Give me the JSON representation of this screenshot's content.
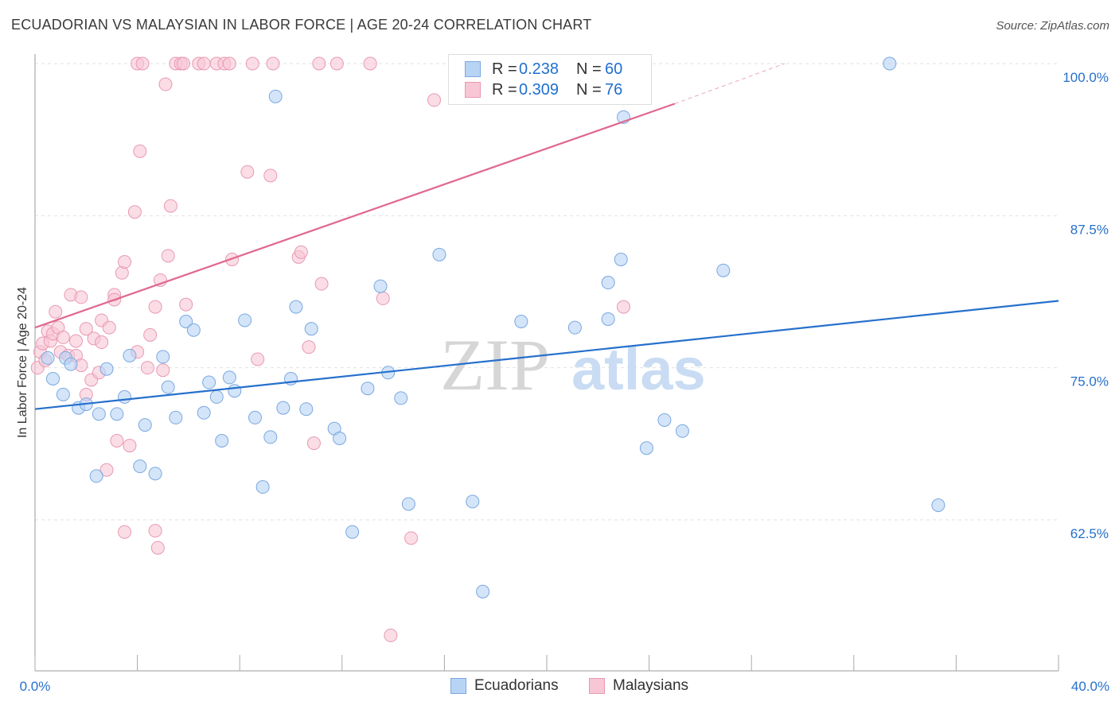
{
  "header": {
    "title": "ECUADORIAN VS MALAYSIAN IN LABOR FORCE | AGE 20-24 CORRELATION CHART",
    "source": "Source: ZipAtlas.com"
  },
  "legend": {
    "series": [
      {
        "name": "Ecuadorians",
        "r_label": "R =",
        "r_value": "0.238",
        "n_label": "N =",
        "n_value": "60",
        "fill": "#b8d4f5",
        "stroke": "#7aa8e0",
        "line": "#2670cc"
      },
      {
        "name": "Malaysians",
        "r_label": "R =",
        "r_value": "0.309",
        "n_label": "N =",
        "n_value": "76",
        "fill": "#f8c6d5",
        "stroke": "#e899b3",
        "line": "#e0688f"
      }
    ]
  },
  "watermark": {
    "zip": "ZIP",
    "atlas": "atlas"
  },
  "chart_data": {
    "type": "scatter",
    "title": "ECUADORIAN VS MALAYSIAN IN LABOR FORCE | AGE 20-24 CORRELATION CHART",
    "xlabel": "",
    "ylabel": "In Labor Force | Age 20-24",
    "xlim": [
      0,
      40
    ],
    "ylim": [
      51,
      101
    ],
    "x_tick_labels": [
      "0.0%",
      "40.0%"
    ],
    "y_ticks": [
      62.5,
      75.0,
      87.5,
      100.0
    ],
    "y_tick_labels": [
      "62.5%",
      "75.0%",
      "87.5%",
      "100.0%"
    ],
    "grid": true,
    "series": [
      {
        "name": "Ecuadorians",
        "trend": {
          "x0": 0,
          "y0": 71.6,
          "x1": 40,
          "y1": 80.5
        },
        "points": [
          [
            0.5,
            75.8
          ],
          [
            0.7,
            74.1
          ],
          [
            1.1,
            72.8
          ],
          [
            1.2,
            75.8
          ],
          [
            1.4,
            75.3
          ],
          [
            1.7,
            71.7
          ],
          [
            2.0,
            72.0
          ],
          [
            2.4,
            66.1
          ],
          [
            2.5,
            71.2
          ],
          [
            2.8,
            74.9
          ],
          [
            3.2,
            71.2
          ],
          [
            3.5,
            72.6
          ],
          [
            3.7,
            76.0
          ],
          [
            4.1,
            66.9
          ],
          [
            4.3,
            70.3
          ],
          [
            4.7,
            66.3
          ],
          [
            5.0,
            75.9
          ],
          [
            5.2,
            73.4
          ],
          [
            5.5,
            70.9
          ],
          [
            5.9,
            78.8
          ],
          [
            6.2,
            78.1
          ],
          [
            6.6,
            71.3
          ],
          [
            6.8,
            73.8
          ],
          [
            7.1,
            72.6
          ],
          [
            7.3,
            69.0
          ],
          [
            7.6,
            74.2
          ],
          [
            7.8,
            73.1
          ],
          [
            8.2,
            78.9
          ],
          [
            8.6,
            70.9
          ],
          [
            8.9,
            65.2
          ],
          [
            9.2,
            69.3
          ],
          [
            9.4,
            97.3
          ],
          [
            9.7,
            71.7
          ],
          [
            10.0,
            74.1
          ],
          [
            10.2,
            80.0
          ],
          [
            10.6,
            71.6
          ],
          [
            10.8,
            78.2
          ],
          [
            11.7,
            70.0
          ],
          [
            11.9,
            69.2
          ],
          [
            12.4,
            61.5
          ],
          [
            13.0,
            73.3
          ],
          [
            13.5,
            81.7
          ],
          [
            13.8,
            74.6
          ],
          [
            14.3,
            72.5
          ],
          [
            14.6,
            63.8
          ],
          [
            15.8,
            84.3
          ],
          [
            17.1,
            64.0
          ],
          [
            17.5,
            56.6
          ],
          [
            19.0,
            78.8
          ],
          [
            21.1,
            78.3
          ],
          [
            22.4,
            82.0
          ],
          [
            22.4,
            79.0
          ],
          [
            22.9,
            83.9
          ],
          [
            23.0,
            95.6
          ],
          [
            23.9,
            68.4
          ],
          [
            24.6,
            70.7
          ],
          [
            25.3,
            69.8
          ],
          [
            26.9,
            83.0
          ],
          [
            33.4,
            100.0
          ],
          [
            35.3,
            63.7
          ]
        ]
      },
      {
        "name": "Malaysians",
        "trend": {
          "x0": 0,
          "y0": 78.3,
          "x1": 25,
          "y1": 96.7
        },
        "trend_extension": {
          "x0": 25,
          "y0": 96.7,
          "x1": 29.3,
          "y1": 100.0
        },
        "points": [
          [
            0.1,
            75.0
          ],
          [
            0.2,
            76.3
          ],
          [
            0.3,
            77.0
          ],
          [
            0.4,
            75.6
          ],
          [
            0.5,
            78.0
          ],
          [
            0.6,
            77.2
          ],
          [
            0.7,
            77.8
          ],
          [
            0.8,
            79.6
          ],
          [
            0.9,
            78.3
          ],
          [
            1.0,
            76.3
          ],
          [
            1.1,
            77.5
          ],
          [
            1.3,
            76.0
          ],
          [
            1.4,
            81.0
          ],
          [
            1.6,
            76.0
          ],
          [
            1.6,
            77.2
          ],
          [
            1.8,
            75.2
          ],
          [
            1.8,
            80.8
          ],
          [
            2.0,
            72.8
          ],
          [
            2.0,
            78.2
          ],
          [
            2.2,
            74.0
          ],
          [
            2.3,
            77.4
          ],
          [
            2.5,
            74.6
          ],
          [
            2.6,
            77.1
          ],
          [
            2.6,
            78.9
          ],
          [
            2.8,
            66.6
          ],
          [
            2.9,
            78.3
          ],
          [
            3.1,
            81.0
          ],
          [
            3.1,
            80.6
          ],
          [
            3.2,
            69.0
          ],
          [
            3.4,
            82.8
          ],
          [
            3.5,
            61.5
          ],
          [
            3.5,
            83.7
          ],
          [
            3.7,
            68.6
          ],
          [
            3.9,
            87.8
          ],
          [
            4.0,
            76.3
          ],
          [
            4.0,
            100.0
          ],
          [
            4.1,
            92.8
          ],
          [
            4.2,
            100.0
          ],
          [
            4.4,
            75.0
          ],
          [
            4.5,
            77.7
          ],
          [
            4.7,
            80.0
          ],
          [
            4.7,
            61.6
          ],
          [
            4.8,
            60.2
          ],
          [
            4.9,
            82.2
          ],
          [
            5.0,
            74.8
          ],
          [
            5.1,
            98.3
          ],
          [
            5.2,
            84.2
          ],
          [
            5.3,
            88.3
          ],
          [
            5.5,
            100.0
          ],
          [
            5.7,
            100.0
          ],
          [
            5.8,
            100.0
          ],
          [
            5.9,
            80.2
          ],
          [
            6.4,
            100.0
          ],
          [
            6.6,
            100.0
          ],
          [
            7.1,
            100.0
          ],
          [
            7.4,
            100.0
          ],
          [
            7.6,
            100.0
          ],
          [
            7.7,
            83.9
          ],
          [
            8.3,
            91.1
          ],
          [
            8.5,
            100.0
          ],
          [
            8.7,
            75.7
          ],
          [
            9.2,
            90.8
          ],
          [
            9.3,
            100.0
          ],
          [
            10.3,
            84.1
          ],
          [
            10.4,
            84.5
          ],
          [
            10.7,
            76.7
          ],
          [
            10.9,
            68.8
          ],
          [
            11.2,
            81.9
          ],
          [
            11.1,
            100.0
          ],
          [
            11.8,
            100.0
          ],
          [
            13.1,
            100.0
          ],
          [
            13.6,
            80.7
          ],
          [
            13.9,
            53.0
          ],
          [
            14.7,
            61.0
          ],
          [
            15.6,
            97.0
          ],
          [
            23.0,
            80.0
          ]
        ]
      }
    ]
  }
}
